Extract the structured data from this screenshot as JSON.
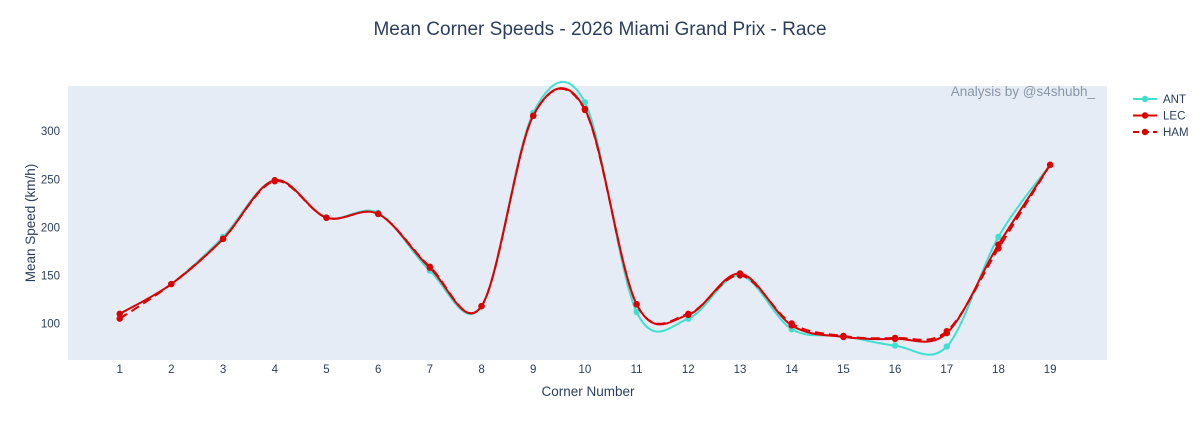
{
  "chart_data": {
    "type": "line",
    "title": "Mean Corner Speeds - 2026 Miami Grand Prix - Race",
    "xlabel": "Corner Number",
    "ylabel": "Mean Speed (km/h)",
    "annotation": "Analysis by @s4shubh_",
    "x": [
      1,
      2,
      3,
      4,
      5,
      6,
      7,
      8,
      9,
      10,
      11,
      12,
      13,
      14,
      15,
      16,
      17,
      18,
      19
    ],
    "xlim": [
      0,
      20.1
    ],
    "ylim": [
      62,
      347
    ],
    "yticks": [
      100,
      150,
      200,
      250,
      300
    ],
    "grid": false,
    "plot_background": "#E5ECF6",
    "legend_position": "top-right",
    "series": [
      {
        "name": "ANT",
        "color": "#40E0D0",
        "dash": "solid",
        "values": [
          110,
          141,
          190,
          249,
          210,
          215,
          155,
          118,
          319,
          330,
          112,
          105,
          150,
          94,
          87,
          77,
          76,
          190,
          265
        ]
      },
      {
        "name": "LEC",
        "color": "#DC0000",
        "dash": "solid",
        "values": [
          110,
          141,
          188,
          249,
          210,
          214,
          158,
          118,
          316,
          323,
          120,
          109,
          152,
          98,
          86,
          84,
          90,
          182,
          265
        ]
      },
      {
        "name": "HAM",
        "color": "#DC0000",
        "dash": "dash",
        "values": [
          105,
          141,
          188,
          248,
          210,
          214,
          159,
          118,
          316,
          322,
          120,
          110,
          150,
          100,
          87,
          85,
          92,
          178,
          265
        ]
      }
    ]
  }
}
